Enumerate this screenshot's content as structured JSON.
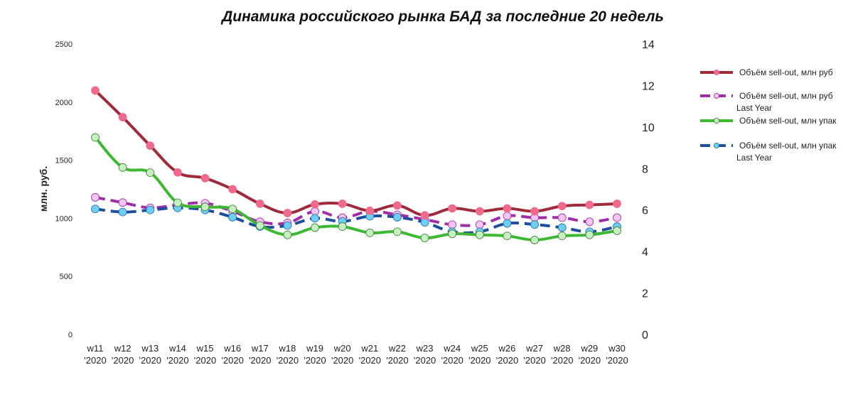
{
  "chart_data": {
    "type": "line",
    "title": "Динамика российского рынка БАД за последние 20 недель",
    "ylabel": "млн. руб.",
    "ylim_left": [
      0,
      2500
    ],
    "yticks_left": [
      "0",
      "500",
      "1000",
      "1500",
      "2000",
      "2500"
    ],
    "ylim_right": [
      0,
      14
    ],
    "yticks_right": [
      "0",
      "2",
      "4",
      "6",
      "8",
      "10",
      "12",
      "14"
    ],
    "grid": false,
    "legend_position": "right",
    "categories": [
      [
        "w11",
        "'2020"
      ],
      [
        "w12",
        "'2020"
      ],
      [
        "w13",
        "'2020"
      ],
      [
        "w14",
        "'2020"
      ],
      [
        "w15",
        "'2020"
      ],
      [
        "w16",
        "'2020"
      ],
      [
        "w17",
        "'2020"
      ],
      [
        "w18",
        "'2020"
      ],
      [
        "w19",
        "'2020"
      ],
      [
        "w20",
        "'2020"
      ],
      [
        "w21",
        "'2020"
      ],
      [
        "w22",
        "'2020"
      ],
      [
        "w23",
        "'2020"
      ],
      [
        "w24",
        "'2020"
      ],
      [
        "w25",
        "'2020"
      ],
      [
        "w26",
        "'2020"
      ],
      [
        "w27",
        "'2020"
      ],
      [
        "w28",
        "'2020"
      ],
      [
        "w29",
        "'2020"
      ],
      [
        "w30",
        "'2020"
      ]
    ],
    "series": [
      {
        "name": "Объём sell-out, млн руб",
        "legend_lines": [
          "Объём sell-out, млн руб"
        ],
        "axis": "left",
        "color": "#9e2a3a",
        "marker_color": "#f06a8e",
        "marker_stroke": "#f06a8e",
        "dashed": false,
        "values": [
          2100,
          1870,
          1625,
          1395,
          1345,
          1250,
          1125,
          1045,
          1120,
          1125,
          1065,
          1110,
          1025,
          1085,
          1060,
          1085,
          1060,
          1105,
          1115,
          1125
        ]
      },
      {
        "name": "Объём sell-out, млн руб Last Year",
        "legend_lines": [
          "Объём sell-out, млн руб",
          "Last Year"
        ],
        "axis": "left",
        "color": "#a02ea8",
        "marker_color": "#f2c4f2",
        "marker_stroke": "#9b2c9b",
        "dashed": true,
        "values": [
          1180,
          1135,
          1090,
          1115,
          1130,
          1060,
          970,
          960,
          1060,
          1005,
          1060,
          1030,
          990,
          945,
          945,
          1020,
          1005,
          1005,
          970,
          1005
        ]
      },
      {
        "name": "Объём sell-out, млн упак",
        "legend_lines": [
          "Объём sell-out, млн упак"
        ],
        "axis": "right",
        "color": "#3cb832",
        "marker_color": "#c6efc2",
        "marker_stroke": "#3a7a30",
        "dashed": false,
        "values": [
          9.5,
          8.05,
          7.8,
          6.35,
          6.15,
          6.05,
          5.25,
          4.8,
          5.15,
          5.2,
          4.9,
          4.95,
          4.65,
          4.85,
          4.8,
          4.75,
          4.55,
          4.75,
          4.8,
          5.0
        ]
      },
      {
        "name": "Объём sell-out, млн упак Last Year",
        "legend_lines": [
          "Объём sell-out, млн упак",
          "Last Year"
        ],
        "axis": "right",
        "color": "#1f4e9e",
        "marker_color": "#6ecff5",
        "marker_stroke": "#2a6aa0",
        "dashed": true,
        "values": [
          6.05,
          5.9,
          6.0,
          6.1,
          6.0,
          5.65,
          5.2,
          5.25,
          5.6,
          5.45,
          5.7,
          5.65,
          5.4,
          4.95,
          4.95,
          5.35,
          5.3,
          5.15,
          4.95,
          5.2
        ]
      }
    ]
  }
}
